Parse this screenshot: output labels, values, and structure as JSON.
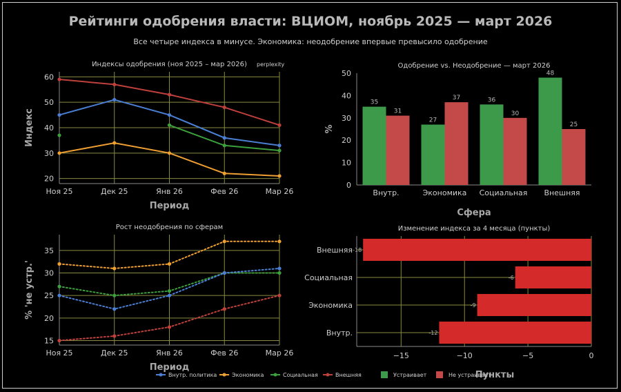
{
  "title": "Рейтинги одобрения власти: ВЦИОМ, ноябрь 2025 — март 2026",
  "subtitle": "Все четыре индекса в минусе. Экономика: неодобрение впервые превысило одобрение",
  "watermark": "perplexity",
  "colors": {
    "blue": "#4a7fd4",
    "orange": "#f0a030",
    "green": "#3ca03c",
    "red": "#c0403c",
    "bar_green": "#3d9a4b",
    "bar_red": "#c44a4a",
    "bar_change": "#d42a2a",
    "grid": "#8a8a40"
  },
  "legend": {
    "items": [
      {
        "label": "Внутр. политика",
        "color": "#4a7fd4",
        "kind": "line"
      },
      {
        "label": "Экономика",
        "color": "#f0a030",
        "kind": "line"
      },
      {
        "label": "Социальная",
        "color": "#3ca03c",
        "kind": "line"
      },
      {
        "label": "Внешняя",
        "color": "#c0403c",
        "kind": "line"
      },
      {
        "label": "Устраивает",
        "color": "#3d9a4b",
        "kind": "box"
      },
      {
        "label": "Не устраивает",
        "color": "#c44a4a",
        "kind": "box"
      }
    ]
  },
  "chart_data": [
    {
      "type": "line",
      "title": "Индексы одобрения (ноя 2025 – мар 2026)",
      "xlabel": "Период",
      "ylabel": "Индекс",
      "categories": [
        "Ноя 25",
        "Дек 25",
        "Янв 26",
        "Фев 26",
        "Мар 26"
      ],
      "ylim": [
        18,
        62
      ],
      "yticks": [
        20,
        30,
        40,
        50,
        60
      ],
      "grid": true,
      "series": [
        {
          "name": "Внешняя",
          "color": "#c0403c",
          "values": [
            59,
            57,
            53,
            48,
            41
          ]
        },
        {
          "name": "Внутр. политика",
          "color": "#4a7fd4",
          "values": [
            45,
            51,
            45,
            36,
            33
          ]
        },
        {
          "name": "Социальная",
          "color": "#3ca03c",
          "values": [
            37,
            null,
            41,
            33,
            31
          ]
        },
        {
          "name": "Экономика",
          "color": "#f0a030",
          "values": [
            30,
            34,
            30,
            22,
            21
          ]
        }
      ]
    },
    {
      "type": "bar",
      "title": "Одобрение vs. Неодобрение — март 2026",
      "xlabel": "Сфера",
      "ylabel": "%",
      "categories": [
        "Внутр.",
        "Экономика",
        "Социальная",
        "Внешняя"
      ],
      "ylim": [
        0,
        50
      ],
      "yticks": [
        0,
        10,
        20,
        30,
        40,
        50
      ],
      "grid": false,
      "series": [
        {
          "name": "Устраивает",
          "color": "#3d9a4b",
          "values": [
            35,
            27,
            36,
            48
          ]
        },
        {
          "name": "Не устраивает",
          "color": "#c44a4a",
          "values": [
            31,
            37,
            30,
            25
          ]
        }
      ]
    },
    {
      "type": "line",
      "title": "Рост неодобрения по сферам",
      "xlabel": "Период",
      "ylabel": "% 'не устр.'",
      "categories": [
        "Ноя 25",
        "Дек 25",
        "Янв 26",
        "Фев 26",
        "Мар 26"
      ],
      "ylim": [
        14,
        38.5
      ],
      "yticks": [
        15,
        20,
        25,
        30,
        35
      ],
      "grid": true,
      "dotted": true,
      "series": [
        {
          "name": "Экономика",
          "color": "#f0a030",
          "values": [
            32,
            31,
            32,
            37,
            37
          ]
        },
        {
          "name": "Социальная",
          "color": "#3ca03c",
          "values": [
            27,
            25,
            26,
            30,
            30
          ]
        },
        {
          "name": "Внутр. политика",
          "color": "#4a7fd4",
          "values": [
            25,
            22,
            25,
            30,
            31
          ]
        },
        {
          "name": "Внешняя",
          "color": "#c0403c",
          "values": [
            15,
            16,
            18,
            22,
            25
          ]
        }
      ]
    },
    {
      "type": "hbar",
      "title": "Изменение индекса за 4 месяца (пункты)",
      "xlabel": "Пункты",
      "categories": [
        "Внешняя",
        "Социальная",
        "Экономика",
        "Внутр."
      ],
      "values": [
        -18,
        -6,
        -9,
        -12
      ],
      "data_labels": [
        "-18",
        "-6",
        "-9",
        "-12"
      ],
      "xlim": [
        -18.5,
        0
      ],
      "xticks": [
        -15,
        -10,
        -5,
        0
      ],
      "xtick_labels": [
        "−15",
        "−10",
        "−5",
        "0"
      ],
      "color": "#d42a2a",
      "grid": true
    }
  ]
}
